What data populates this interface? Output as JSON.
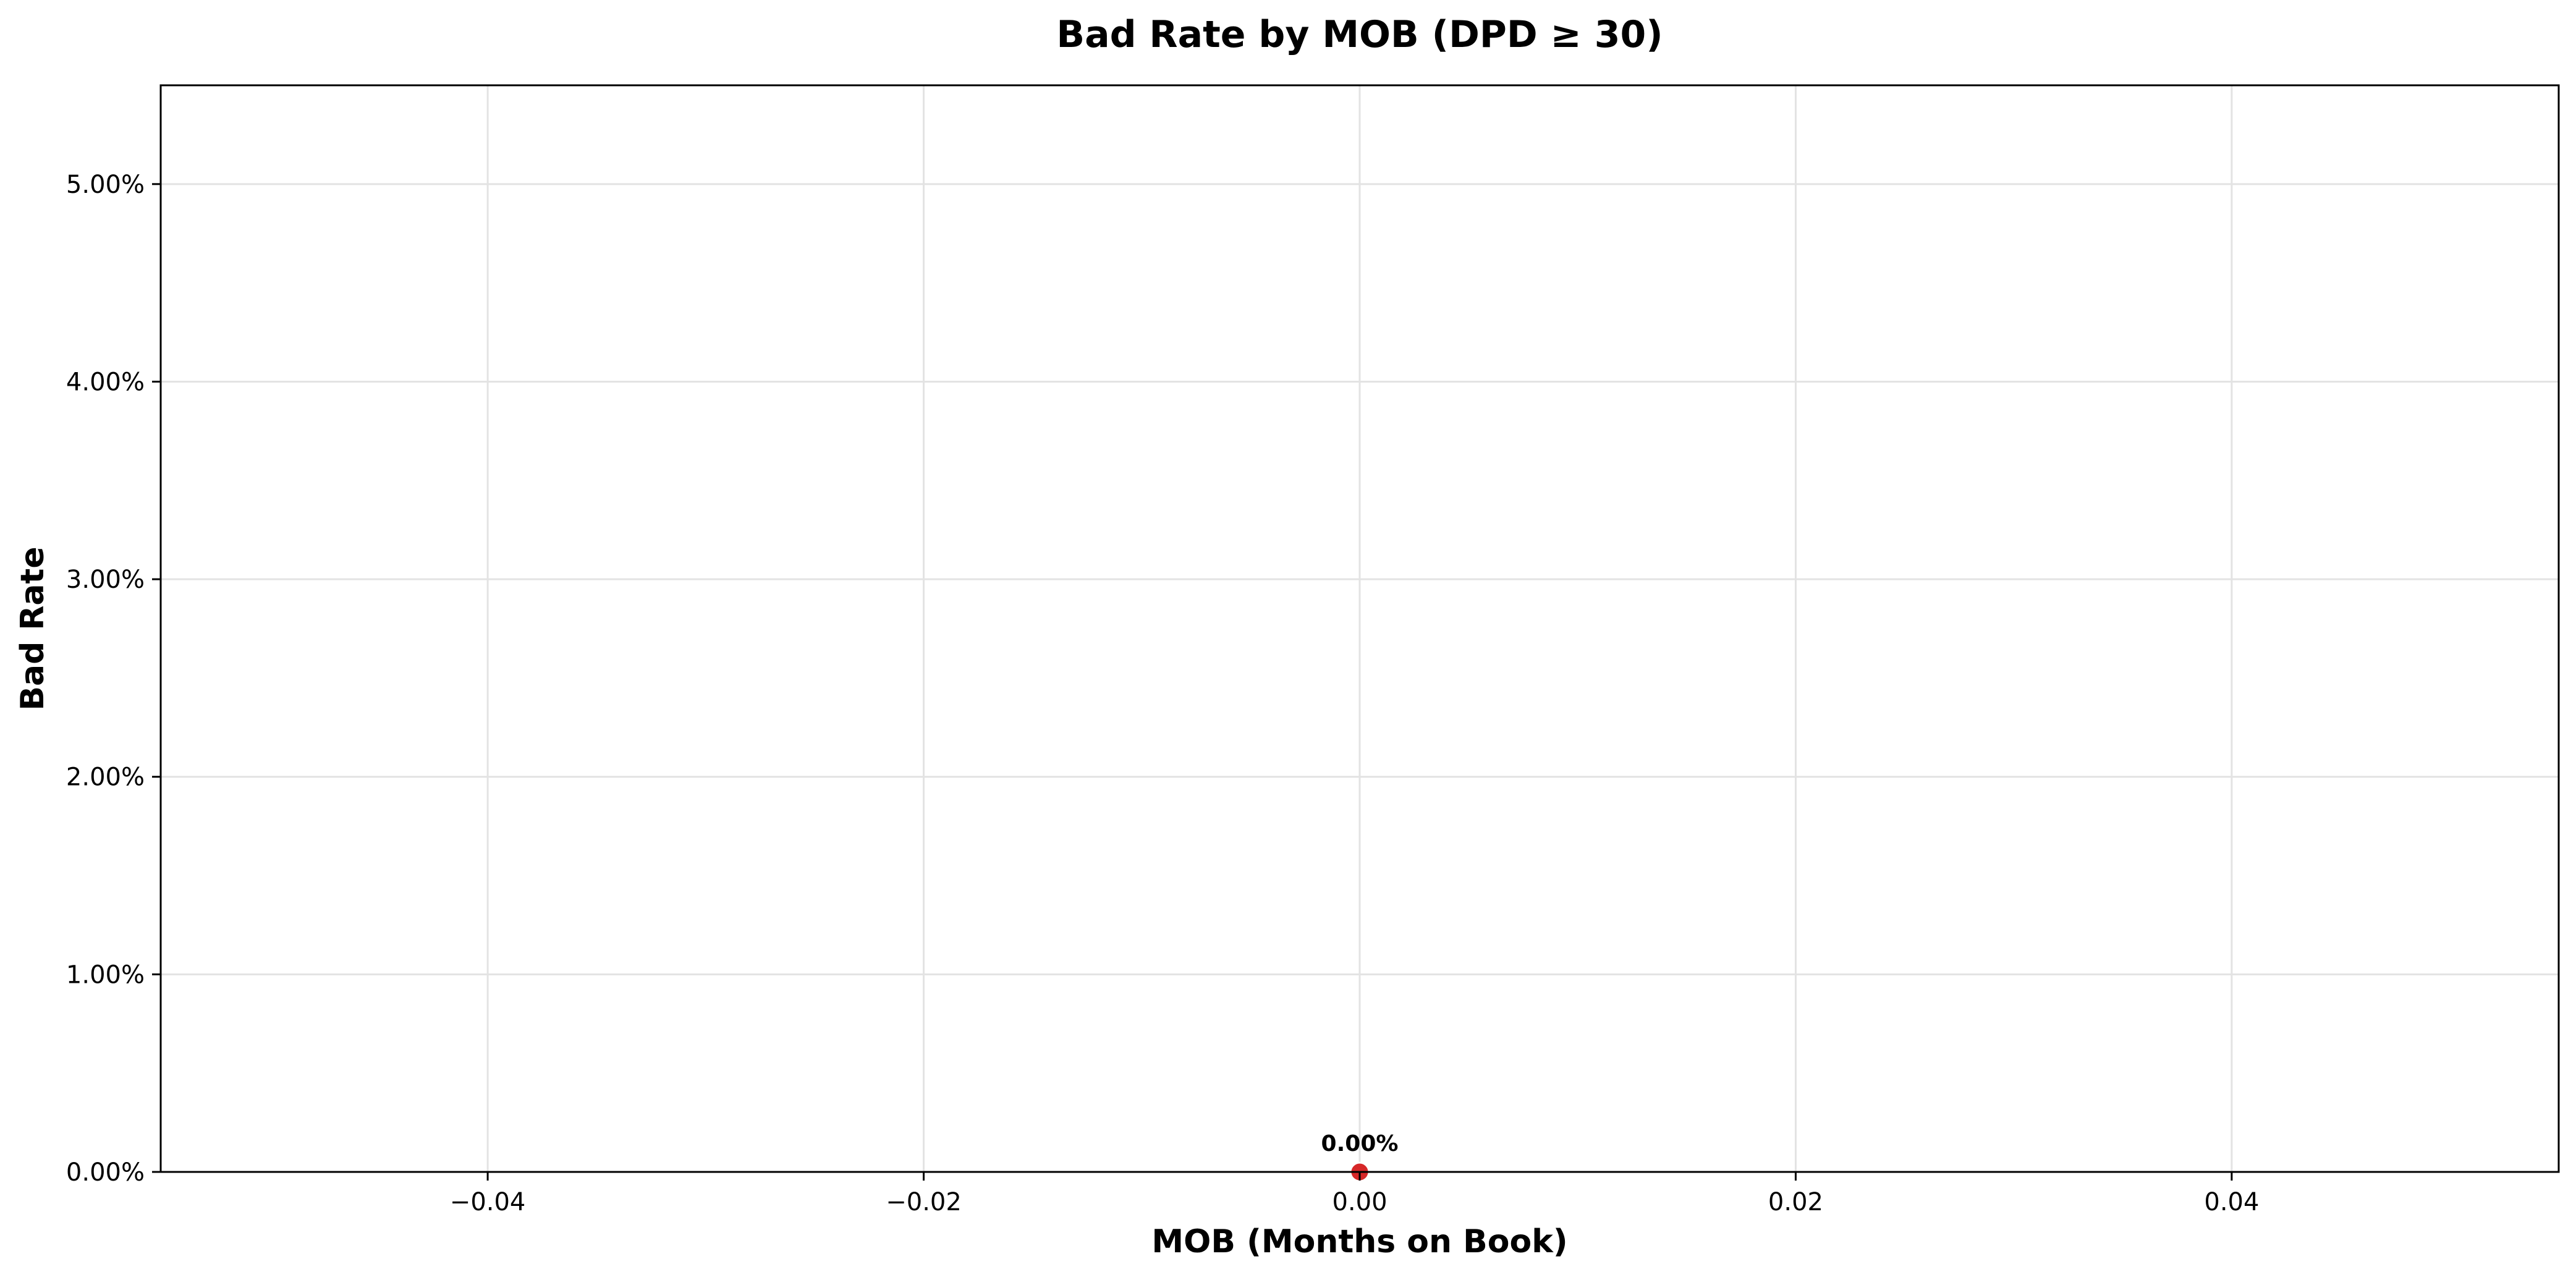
{
  "chart_data": {
    "type": "line",
    "title": "Bad Rate by MOB (DPD ≥ 30)",
    "xlabel": "MOB (Months on Book)",
    "ylabel": "Bad Rate",
    "xlim": [
      -0.055,
      0.055
    ],
    "ylim": [
      0,
      0.055
    ],
    "x_ticks": [
      {
        "value": -0.04,
        "label": "−0.04"
      },
      {
        "value": -0.02,
        "label": "−0.02"
      },
      {
        "value": 0.0,
        "label": "0.00"
      },
      {
        "value": 0.02,
        "label": "0.02"
      },
      {
        "value": 0.04,
        "label": "0.04"
      }
    ],
    "y_ticks": [
      {
        "value": 0.0,
        "label": "0.00%"
      },
      {
        "value": 0.01,
        "label": "1.00%"
      },
      {
        "value": 0.02,
        "label": "2.00%"
      },
      {
        "value": 0.03,
        "label": "3.00%"
      },
      {
        "value": 0.04,
        "label": "4.00%"
      },
      {
        "value": 0.05,
        "label": "5.00%"
      }
    ],
    "grid": true,
    "legend": "none",
    "series": [
      {
        "color": "#d62728",
        "points": [
          {
            "x": 0,
            "y": 0.0,
            "label": "0.00%"
          }
        ]
      }
    ]
  }
}
